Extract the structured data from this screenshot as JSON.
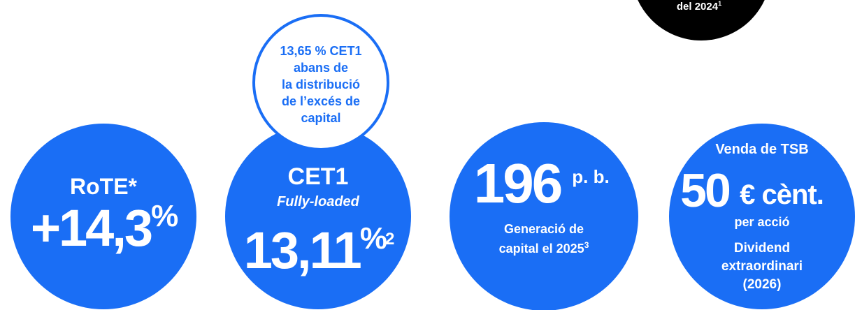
{
  "black_badge": {
    "text": "del 2024",
    "note": "1"
  },
  "kpis": [
    {
      "label": "RoTE*",
      "value": "+14,3",
      "unit": "%"
    },
    {
      "label": "CET1",
      "sublabel": "Fully-loaded",
      "value": "13,11",
      "unit": "%",
      "note": "2",
      "callout": [
        "13,65 % CET1",
        "abans de",
        "la distribució",
        "de l’excés de",
        "capital"
      ]
    },
    {
      "value": "196",
      "unit": "p. b.",
      "caption": [
        "Generació de",
        "capital el 2025"
      ],
      "note": "3"
    },
    {
      "header": "Venda de TSB",
      "value": "50",
      "unit": "€ cènt.",
      "caption": [
        "per acció"
      ],
      "footer": [
        "Dividend",
        "extraordinari",
        "(2026)"
      ]
    }
  ]
}
